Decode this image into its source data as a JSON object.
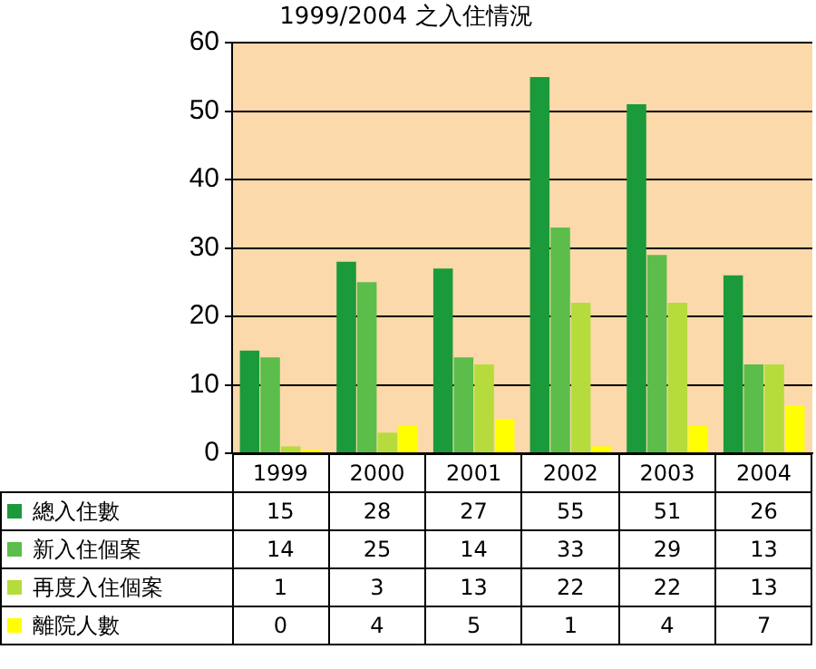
{
  "chart_data": {
    "type": "bar",
    "title": "1999/2004 之入住情況",
    "categories": [
      "1999",
      "2000",
      "2001",
      "2002",
      "2003",
      "2004"
    ],
    "series": [
      {
        "name": "總入住數",
        "color": "#1a9a3a",
        "values": [
          15,
          28,
          27,
          55,
          51,
          26
        ]
      },
      {
        "name": "新入住個案",
        "color": "#5cbd4a",
        "values": [
          14,
          25,
          14,
          33,
          29,
          13
        ]
      },
      {
        "name": "再度入住個案",
        "color": "#b5dc3c",
        "values": [
          1,
          3,
          13,
          22,
          22,
          13
        ]
      },
      {
        "name": "離院人數",
        "color": "#ffff00",
        "values": [
          0,
          4,
          5,
          1,
          4,
          7
        ]
      }
    ],
    "ylim": [
      0,
      60
    ],
    "yticks": [
      0,
      10,
      20,
      30,
      40,
      50,
      60
    ],
    "grid": "y",
    "legend": "bottom",
    "data_labels": true
  }
}
